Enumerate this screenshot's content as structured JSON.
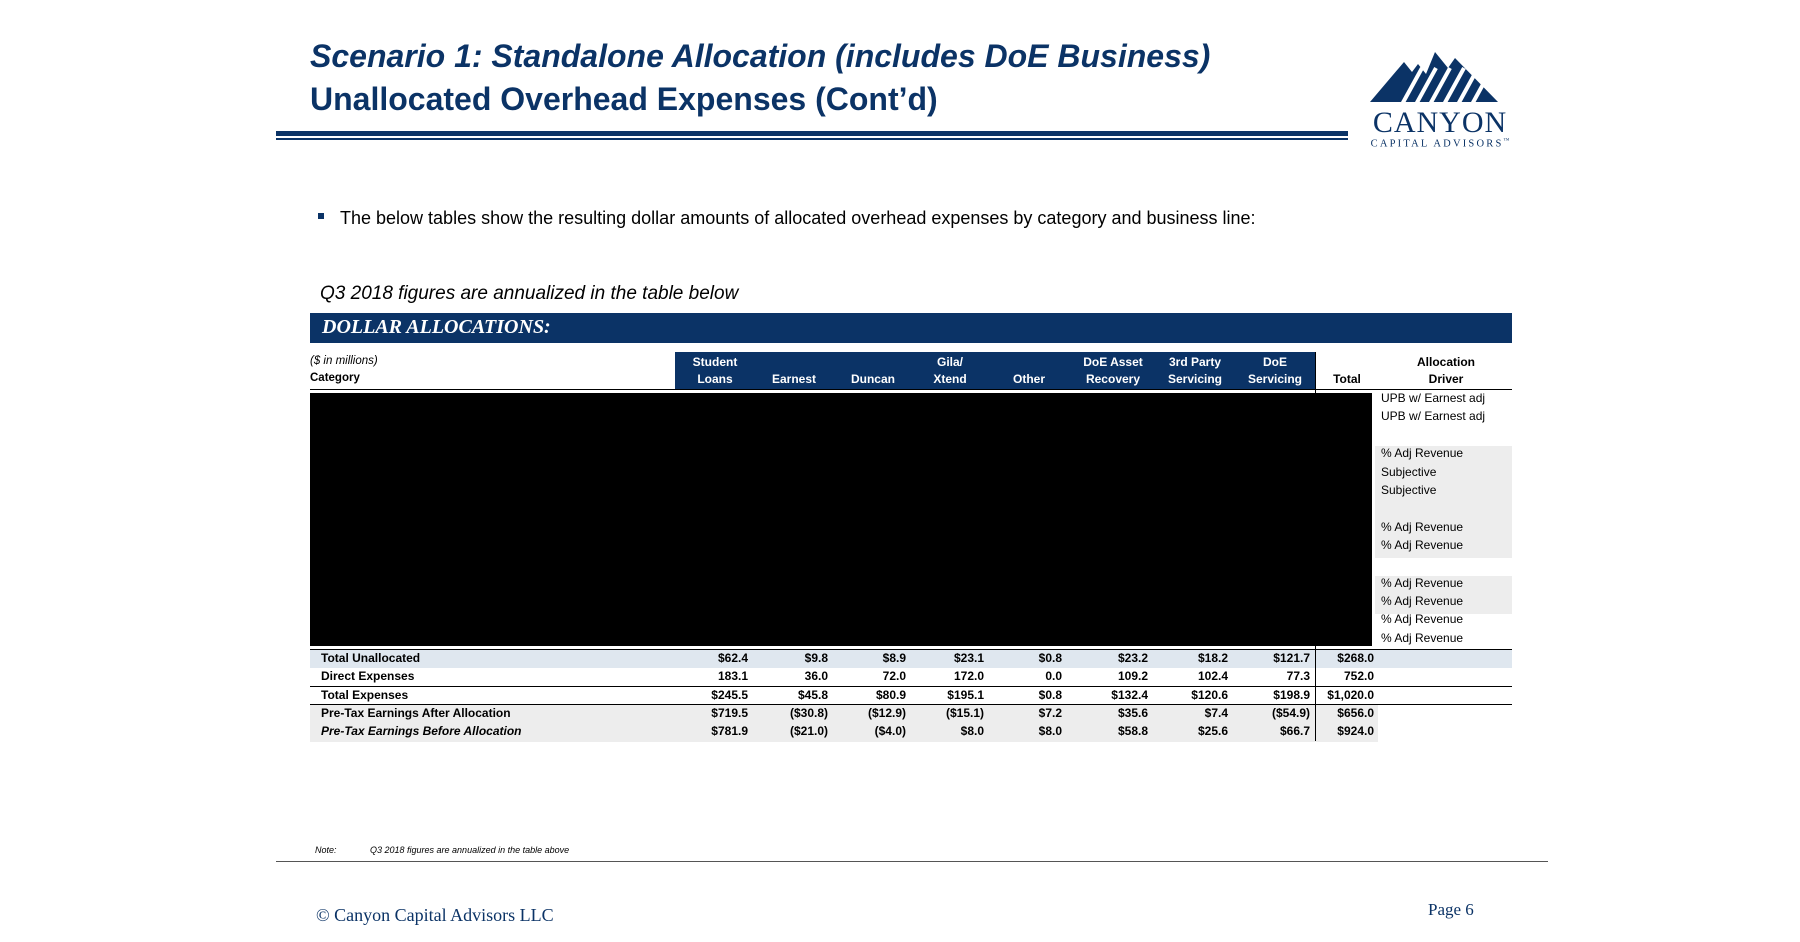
{
  "header": {
    "title_line1": "Scenario 1: Standalone Allocation (includes DoE Business)",
    "title_line2": "Unallocated Overhead Expenses (Cont’d)"
  },
  "logo": {
    "name": "CANYON",
    "subtitle": "CAPITAL ADVISORS",
    "mark": "™"
  },
  "bullet": "The below tables show the resulting dollar amounts of allocated overhead expenses by category and business line:",
  "table_caption": "Q3 2018 figures are annualized in the table below",
  "section_banner": "DOLLAR ALLOCATIONS:",
  "table": {
    "units_label": "($ in millions)",
    "category_label": "Category",
    "columns": [
      {
        "line1": "Student",
        "line2": "Loans"
      },
      {
        "line1": "",
        "line2": "Earnest"
      },
      {
        "line1": "",
        "line2": "Duncan"
      },
      {
        "line1": "Gila/",
        "line2": "Xtend"
      },
      {
        "line1": "",
        "line2": "Other"
      },
      {
        "line1": "DoE Asset",
        "line2": "Recovery"
      },
      {
        "line1": "3rd Party",
        "line2": "Servicing"
      },
      {
        "line1": "DoE",
        "line2": "Servicing"
      },
      {
        "line1": "",
        "line2": "Total"
      }
    ],
    "driver_header": {
      "line1": "Allocation",
      "line2": "Driver"
    },
    "drivers": [
      "UPB w/ Earnest adj",
      "UPB w/ Earnest adj",
      "",
      "% Adj Revenue",
      "Subjective",
      "Subjective",
      "",
      "% Adj Revenue",
      "% Adj Revenue",
      "",
      "% Adj Revenue",
      "% Adj Revenue",
      "% Adj Revenue",
      "% Adj Revenue"
    ],
    "summary_rows": [
      {
        "label": "Total Unallocated",
        "values": [
          "$62.4",
          "$9.8",
          "$8.9",
          "$23.1",
          "$0.8",
          "$23.2",
          "$18.2",
          "$121.7",
          "$268.0"
        ]
      },
      {
        "label": "Direct Expenses",
        "values": [
          "183.1",
          "36.0",
          "72.0",
          "172.0",
          "0.0",
          "109.2",
          "102.4",
          "77.3",
          "752.0"
        ]
      },
      {
        "label": "Total Expenses",
        "values": [
          "$245.5",
          "$45.8",
          "$80.9",
          "$195.1",
          "$0.8",
          "$132.4",
          "$120.6",
          "$198.9",
          "$1,020.0"
        ]
      },
      {
        "label": "Pre-Tax Earnings After Allocation",
        "values": [
          "$719.5",
          "($30.8)",
          "($12.9)",
          "($15.1)",
          "$7.2",
          "$35.6",
          "$7.4",
          "($54.9)",
          "$656.0"
        ]
      },
      {
        "label": "Pre-Tax Earnings Before Allocation",
        "values": [
          "$781.9",
          "($21.0)",
          "($4.0)",
          "$8.0",
          "$8.0",
          "$58.8",
          "$25.6",
          "$66.7",
          "$924.0"
        ]
      }
    ]
  },
  "note": {
    "label": "Note:",
    "text": "Q3 2018 figures are annualized in the table above"
  },
  "footer": {
    "copyright": "© Canyon Capital Advisors LLC",
    "page": "Page 6"
  },
  "colors": {
    "brand_navy": "#0b3366",
    "row_shade": "#dfe7ef",
    "driver_shade": "#ededed"
  }
}
